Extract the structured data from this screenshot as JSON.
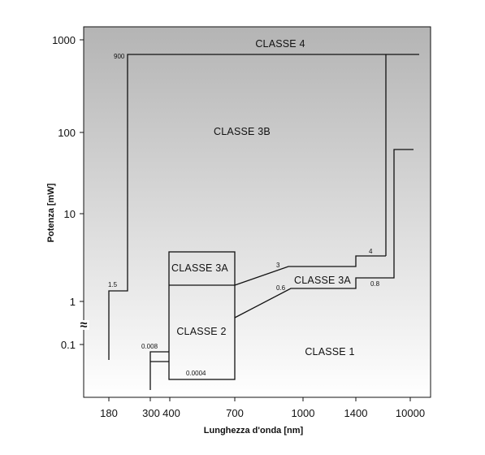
{
  "chart_data": {
    "type": "line",
    "title": "",
    "xlabel": "Lunghezza d'onda [nm]",
    "ylabel": "Potenza [mW]",
    "scale": "piecewise-logarithmic",
    "x_ticks": [
      "180",
      "300",
      "400",
      "700",
      "1000",
      "1400",
      "10000"
    ],
    "y_ticks": [
      "1000",
      "100",
      "10",
      "1",
      "0.1"
    ],
    "axis_break": "≈",
    "regions": [
      "CLASSE 4",
      "CLASSE 3B",
      "CLASSE 3A",
      "CLASSE 2",
      "CLASSE 3A",
      "CLASSE 1"
    ],
    "annotations": [
      "900",
      "1.5",
      "3",
      "4",
      "0.6",
      "0.8",
      "0.008",
      "0.0004"
    ],
    "background": {
      "top": "#b4b4b4",
      "bottom": "#ffffff"
    }
  }
}
